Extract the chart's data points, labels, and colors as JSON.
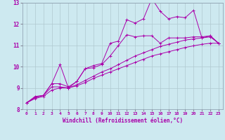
{
  "xlabel": "Windchill (Refroidissement éolien,°C)",
  "xlim": [
    -0.5,
    23.5
  ],
  "ylim": [
    8,
    13
  ],
  "xticks": [
    0,
    1,
    2,
    3,
    4,
    5,
    6,
    7,
    8,
    9,
    10,
    11,
    12,
    13,
    14,
    15,
    16,
    17,
    18,
    19,
    20,
    21,
    22,
    23
  ],
  "yticks": [
    8,
    9,
    10,
    11,
    12,
    13
  ],
  "bg_color": "#cde9f0",
  "line_color": "#aa00aa",
  "grid_color": "#b0c8d0",
  "series": [
    [
      8.3,
      8.6,
      8.65,
      9.2,
      10.1,
      9.0,
      9.3,
      9.9,
      10.05,
      10.15,
      11.1,
      11.2,
      12.2,
      12.05,
      12.25,
      13.2,
      12.6,
      12.25,
      12.35,
      12.3,
      12.65,
      11.35,
      11.45,
      11.1
    ],
    [
      8.3,
      8.55,
      8.65,
      9.2,
      9.2,
      9.05,
      9.3,
      9.9,
      9.95,
      10.1,
      10.5,
      11.0,
      11.5,
      11.4,
      11.45,
      11.45,
      11.1,
      11.35,
      11.35,
      11.35,
      11.4,
      11.4,
      11.45,
      11.1
    ],
    [
      8.3,
      8.55,
      8.65,
      9.05,
      9.05,
      9.0,
      9.15,
      9.35,
      9.55,
      9.75,
      9.9,
      10.1,
      10.3,
      10.5,
      10.65,
      10.8,
      10.95,
      11.05,
      11.15,
      11.25,
      11.3,
      11.35,
      11.4,
      11.1
    ],
    [
      8.3,
      8.5,
      8.6,
      8.9,
      9.0,
      9.0,
      9.1,
      9.25,
      9.45,
      9.6,
      9.75,
      9.9,
      10.05,
      10.2,
      10.35,
      10.5,
      10.6,
      10.7,
      10.8,
      10.9,
      10.98,
      11.05,
      11.1,
      11.1
    ]
  ]
}
